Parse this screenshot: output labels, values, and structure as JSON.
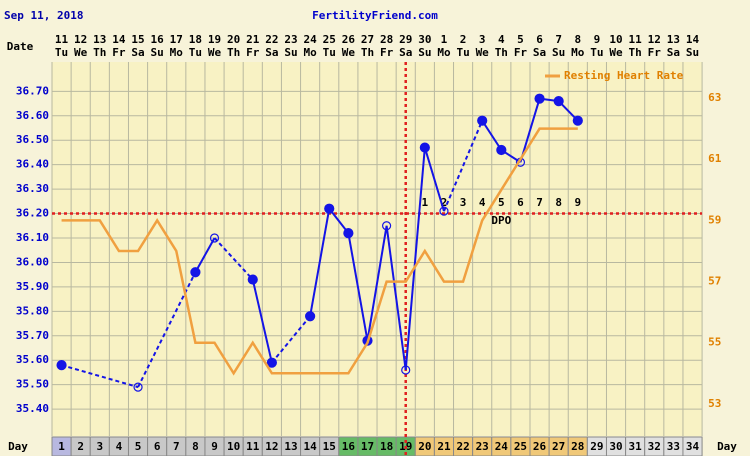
{
  "chart_data": {
    "type": "line",
    "title": "FertilityFriend.com",
    "chart_date": "Sep 11, 2018",
    "date_row_label": "Date",
    "day_row_label": "Day",
    "dates": [
      "11",
      "12",
      "13",
      "14",
      "15",
      "16",
      "17",
      "18",
      "19",
      "20",
      "21",
      "22",
      "23",
      "24",
      "25",
      "26",
      "27",
      "28",
      "29",
      "30",
      "1",
      "2",
      "3",
      "4",
      "5",
      "6",
      "7",
      "8",
      "9",
      "10",
      "11",
      "12",
      "13",
      "14"
    ],
    "weekdays": [
      "Tu",
      "We",
      "Th",
      "Fr",
      "Sa",
      "Su",
      "Mo",
      "Tu",
      "We",
      "Th",
      "Fr",
      "Sa",
      "Su",
      "Mo",
      "Tu",
      "We",
      "Th",
      "Fr",
      "Sa",
      "Su",
      "Mo",
      "Tu",
      "We",
      "Th",
      "Fr",
      "Sa",
      "Su",
      "Mo",
      "Tu",
      "We",
      "Th",
      "Fr",
      "Sa",
      "Su"
    ],
    "days": [
      1,
      2,
      3,
      4,
      5,
      6,
      7,
      8,
      9,
      10,
      11,
      12,
      13,
      14,
      15,
      16,
      17,
      18,
      19,
      20,
      21,
      22,
      23,
      24,
      25,
      26,
      27,
      28,
      29,
      30,
      31,
      32,
      33,
      34
    ],
    "day_colors": [
      "#b8b8e0",
      "#c8c8c8",
      "#c8c8c8",
      "#c8c8c8",
      "#c8c8c8",
      "#c8c8c8",
      "#c8c8c8",
      "#c8c8c8",
      "#c8c8c8",
      "#c8c8c8",
      "#c8c8c8",
      "#c8c8c8",
      "#c8c8c8",
      "#c8c8c8",
      "#c8c8c8",
      "#66bb66",
      "#66bb66",
      "#66bb66",
      "#66bb66",
      "#f0c878",
      "#f0c878",
      "#f0c878",
      "#f0c878",
      "#f0c878",
      "#f0c878",
      "#f0c878",
      "#f0c878",
      "#f0c878",
      "#e0e0e0",
      "#e0e0e0",
      "#e0e0e0",
      "#e0e0e0",
      "#e0e0e0",
      "#e0e0e0"
    ],
    "series": [
      {
        "color": "#1414e6",
        "values": [
          35.58,
          null,
          null,
          null,
          35.49,
          null,
          null,
          35.96,
          36.1,
          null,
          35.93,
          35.59,
          null,
          35.78,
          36.22,
          36.12,
          35.68,
          36.15,
          35.56,
          36.47,
          36.21,
          null,
          36.58,
          36.46,
          36.41,
          36.67,
          36.66,
          36.58,
          null,
          null,
          null,
          null,
          null,
          null
        ],
        "markers": [
          "filled",
          null,
          null,
          null,
          "open",
          null,
          null,
          "filled",
          "open",
          null,
          "filled",
          "filled",
          null,
          "filled",
          "filled",
          "filled",
          "filled",
          "open",
          "open",
          "filled",
          "open",
          null,
          "filled",
          "filled",
          "open",
          "filled",
          "filled",
          "filled",
          null,
          null,
          null,
          null,
          null,
          null
        ]
      },
      {
        "name": "Resting Heart Rate",
        "color": "#f0a040",
        "axis": "y2",
        "values": [
          59,
          59,
          59,
          58,
          58,
          59,
          58,
          55,
          55,
          54,
          55,
          54,
          54,
          54,
          54,
          54,
          55,
          57,
          57,
          58,
          57,
          57,
          59,
          60,
          61,
          62,
          62,
          62,
          null,
          null,
          null,
          null,
          null,
          null
        ]
      }
    ],
    "coverline": 36.2,
    "coverline_color": "#e02020",
    "ovulation_day": 19,
    "dpo": [
      null,
      null,
      null,
      null,
      null,
      null,
      null,
      null,
      null,
      null,
      null,
      null,
      null,
      null,
      null,
      null,
      null,
      null,
      null,
      1,
      2,
      3,
      4,
      5,
      6,
      7,
      8,
      9,
      null,
      null,
      null,
      null,
      null,
      null
    ],
    "dpo_label": "DPO",
    "ylim": [
      35.29,
      36.82
    ],
    "yticks": [
      {
        "value": 35.4,
        "label": "35.40"
      },
      {
        "value": 35.5,
        "label": "35.50"
      },
      {
        "value": 35.6,
        "label": "35.60"
      },
      {
        "value": 35.7,
        "label": "35.70"
      },
      {
        "value": 35.8,
        "label": "35.80"
      },
      {
        "value": 35.9,
        "label": "35.90"
      },
      {
        "value": 36.0,
        "label": "36.00"
      },
      {
        "value": 36.1,
        "label": "36.10"
      },
      {
        "value": 36.2,
        "label": "36.20"
      },
      {
        "value": 36.3,
        "label": "36.30"
      },
      {
        "value": 36.4,
        "label": "36.40"
      },
      {
        "value": 36.5,
        "label": "36.50"
      },
      {
        "value": 36.6,
        "label": "36.60"
      },
      {
        "value": 36.7,
        "label": "36.70"
      }
    ],
    "y2lim": [
      51.95,
      64.18
    ],
    "y2ticks": [
      53,
      55,
      57,
      59,
      61,
      63
    ],
    "grid": true,
    "legend": "top-right"
  }
}
